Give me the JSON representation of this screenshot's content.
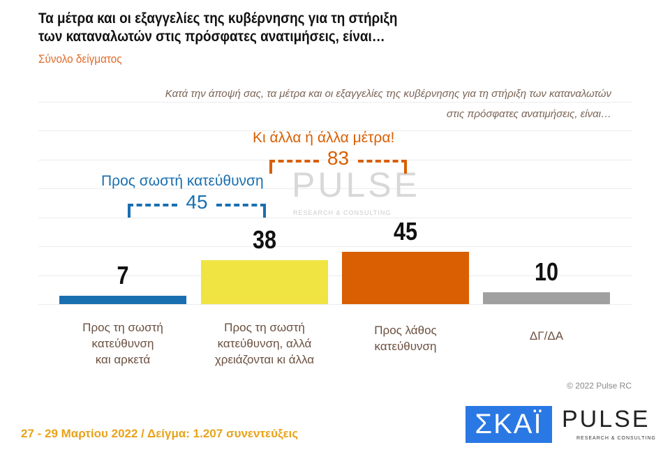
{
  "title_lines": [
    "Τα μέτρα και οι εξαγγελίες της κυβέρνησης για τη στήριξη",
    "των καταναλωτών στις πρόσφατες ανατιμήσεις, είναι…"
  ],
  "subtitle": "Σύνολο δείγματος",
  "question_lines": [
    "Κατά την άποψή σας, τα μέτρα και οι εξαγγελίες της κυβέρνησης για τη στήριξη των καταναλωτών",
    "στις πρόσφατες ανατιμήσεις, είναι…"
  ],
  "chart_data": {
    "type": "bar",
    "categories": [
      [
        "Προς τη σωστή",
        "κατεύθυνση",
        "και αρκετά"
      ],
      [
        "Προς τη σωστή",
        "κατεύθυνση, αλλά",
        "χρειάζονται κι άλλα"
      ],
      [
        "Προς λάθος",
        "κατεύθυνση"
      ],
      [
        "ΔΓ/ΔΑ"
      ]
    ],
    "values": [
      7,
      38,
      45,
      10
    ],
    "colors": [
      "#1a6fb0",
      "#f0e442",
      "#d95f02",
      "#a0a0a0"
    ],
    "ylim": [
      0,
      70
    ],
    "grid": true,
    "annotations": [
      {
        "label": "Προς σωστή κατεύθυνση",
        "value": "45",
        "color": "#1a6fb0",
        "spans": [
          0,
          1
        ]
      },
      {
        "label": "Κι άλλα ή άλλα μέτρα!",
        "value": "83",
        "color": "#d95f02",
        "spans": [
          1,
          2
        ]
      }
    ]
  },
  "watermark": {
    "name": "PULSE",
    "sub": "RESEARCH & CONSULTING"
  },
  "copyright": "© 2022 Pulse RC",
  "footer": "27 - 29  Μαρτίου  2022  /  Δείγμα:  1.207 συνεντεύξεις",
  "logos": {
    "skai": "ΣΚΑΪ",
    "pulse": "PULSE",
    "pulse_sub": "RESEARCH & CONSULTING"
  }
}
